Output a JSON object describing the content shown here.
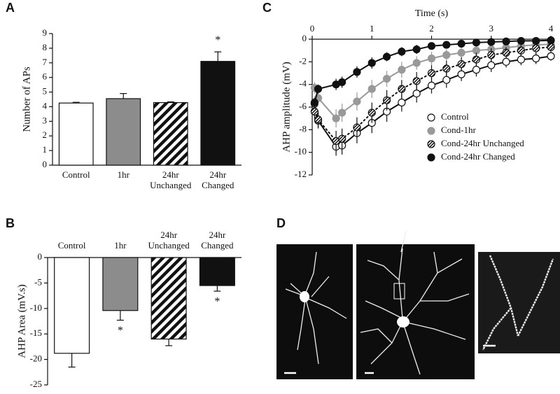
{
  "chart_data": [
    {
      "panel": "A",
      "type": "bar",
      "ylabel": "Number of APs",
      "categories": [
        "Control",
        "1hr",
        "24hr Unchanged",
        "24hr Changed"
      ],
      "values": [
        4.25,
        4.55,
        4.28,
        7.1
      ],
      "errors": [
        0.05,
        0.35,
        0.05,
        0.65
      ],
      "fills": [
        "#ffffff",
        "#8c8c8c",
        "hatched",
        "#111111"
      ],
      "significant": [
        false,
        false,
        false,
        true
      ],
      "significance_label": "*",
      "category_axis": "bottom",
      "ylim": [
        0,
        9
      ],
      "yticks": [
        0,
        1,
        2,
        3,
        4,
        5,
        6,
        7,
        8,
        9
      ]
    },
    {
      "panel": "B",
      "type": "bar",
      "ylabel": "AHP Area (mV.s)",
      "categories": [
        "Control",
        "1hr",
        "24hr Unchanged",
        "24hr Changed"
      ],
      "values": [
        -18.8,
        -10.4,
        -16.0,
        -5.5
      ],
      "errors": [
        2.7,
        1.9,
        1.3,
        1.1
      ],
      "fills": [
        "#ffffff",
        "#8c8c8c",
        "hatched",
        "#111111"
      ],
      "significant": [
        false,
        true,
        false,
        true
      ],
      "significance_label": "*",
      "category_axis": "top",
      "ylim": [
        -25,
        0
      ],
      "yticks": [
        0,
        -5,
        -10,
        -15,
        -20,
        -25
      ]
    },
    {
      "panel": "C",
      "type": "line",
      "xlabel": "Time (s)",
      "ylabel": "AHP amplitude (mV)",
      "x": [
        0.04,
        0.1,
        0.4,
        0.5,
        0.75,
        1,
        1.25,
        1.5,
        1.75,
        2,
        2.25,
        2.5,
        2.75,
        3,
        3.25,
        3.5,
        3.75,
        4
      ],
      "xlim": [
        0,
        4
      ],
      "xticks": [
        0,
        1,
        2,
        3,
        4
      ],
      "ylim": [
        -12,
        0
      ],
      "yticks": [
        0,
        -2,
        -4,
        -6,
        -8,
        -10,
        -12
      ],
      "legend": "lower right",
      "series": [
        {
          "name": "Control",
          "color": "#111111",
          "marker": "open",
          "dash": "solid",
          "values": [
            -5.7,
            -7.2,
            -9.5,
            -9.4,
            -8.3,
            -7.4,
            -6.4,
            -5.6,
            -4.8,
            -4.1,
            -3.6,
            -3.1,
            -2.7,
            -2.3,
            -2.0,
            -1.8,
            -1.7,
            -1.5
          ],
          "errors": [
            0.6,
            0.7,
            0.8,
            0.8,
            0.9,
            0.9,
            0.9,
            0.8,
            0.8,
            0.7,
            0.7,
            0.6,
            0.6,
            0.6,
            0.5,
            0.5,
            0.5,
            0.4
          ]
        },
        {
          "name": "Cond-1hr",
          "color": "#999999",
          "marker": "filled",
          "dash": "solid",
          "values": [
            -4.3,
            -5.2,
            -7.0,
            -6.5,
            -5.5,
            -4.4,
            -3.5,
            -2.7,
            -2.1,
            -1.7,
            -1.4,
            -1.2,
            -1.0,
            -0.9,
            -0.75,
            -0.6,
            -0.5,
            -0.45
          ],
          "errors": [
            0.5,
            0.6,
            0.8,
            0.8,
            0.8,
            0.8,
            0.7,
            0.7,
            0.6,
            0.6,
            0.5,
            0.5,
            0.5,
            0.4,
            0.4,
            0.4,
            0.4,
            0.3
          ]
        },
        {
          "name": "Cond-24hr Unchanged",
          "color": "#111111",
          "marker": "hatched",
          "dash": "dotted",
          "values": [
            -6.4,
            -7.1,
            -9.0,
            -8.8,
            -7.8,
            -6.5,
            -5.4,
            -4.4,
            -3.7,
            -3.0,
            -2.6,
            -2.2,
            -1.8,
            -1.4,
            -1.2,
            -1.0,
            -0.8,
            -0.7
          ],
          "errors": [
            0.6,
            0.7,
            0.9,
            0.9,
            0.9,
            0.9,
            0.9,
            0.8,
            0.8,
            0.7,
            0.7,
            0.6,
            0.6,
            0.6,
            0.5,
            0.5,
            0.5,
            0.4
          ]
        },
        {
          "name": "Cond-24hr Changed",
          "color": "#111111",
          "marker": "filled",
          "dash": "solid",
          "values": [
            -5.6,
            -4.4,
            -4.0,
            -3.8,
            -2.9,
            -2.1,
            -1.55,
            -1.1,
            -0.9,
            -0.6,
            -0.5,
            -0.4,
            -0.3,
            -0.25,
            -0.2,
            -0.15,
            -0.15,
            -0.1
          ],
          "errors": [
            0.4,
            0.4,
            0.5,
            0.5,
            0.5,
            0.5,
            0.4,
            0.4,
            0.4,
            0.3,
            0.3,
            0.3,
            0.3,
            0.2,
            0.2,
            0.2,
            0.2,
            0.2
          ]
        }
      ]
    }
  ],
  "image_panel": {
    "panel": "D"
  }
}
